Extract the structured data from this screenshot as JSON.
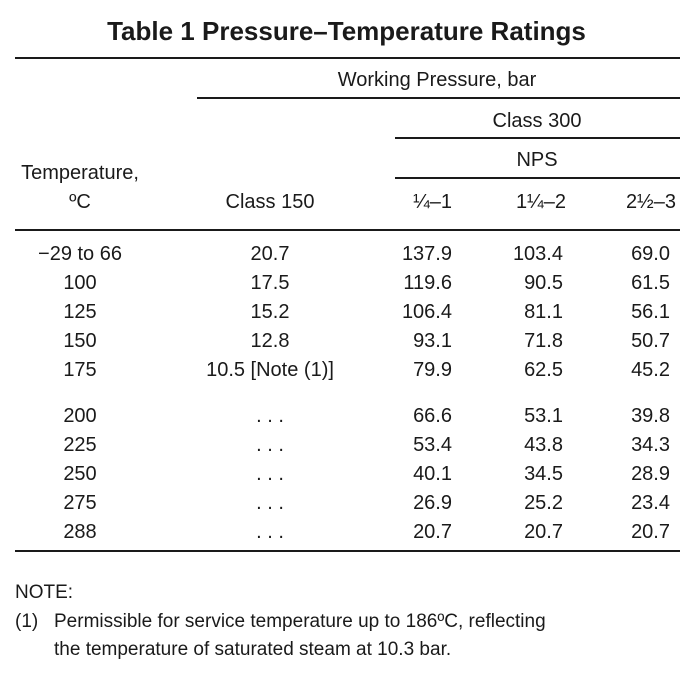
{
  "title": "Table 1    Pressure–Temperature Ratings",
  "header": {
    "working_pressure": "Working Pressure, bar",
    "class_300": "Class 300",
    "nps": "NPS",
    "temperature_line1": "Temperature,",
    "temperature_line2": "ºC",
    "class_150": "Class 150",
    "nps_cols": [
      "¼–1",
      "1¼–2",
      "2½–3"
    ]
  },
  "rows": [
    [
      "−29 to 66",
      "20.7",
      "137.9",
      "103.4",
      "69.0"
    ],
    [
      "100",
      "17.5",
      "119.6",
      "90.5",
      "61.5"
    ],
    [
      "125",
      "15.2",
      "106.4",
      "81.1",
      "56.1"
    ],
    [
      "150",
      "12.8",
      "93.1",
      "71.8",
      "50.7"
    ],
    [
      "175",
      "10.5 [Note (1)]",
      "79.9",
      "62.5",
      "45.2"
    ],
    [
      "200",
      ". . .",
      "66.6",
      "53.1",
      "39.8"
    ],
    [
      "225",
      ". . .",
      "53.4",
      "43.8",
      "34.3"
    ],
    [
      "250",
      ". . .",
      "40.1",
      "34.5",
      "28.9"
    ],
    [
      "275",
      ". . .",
      "26.9",
      "25.2",
      "23.4"
    ],
    [
      "288",
      ". . .",
      "20.7",
      "20.7",
      "20.7"
    ]
  ],
  "notes": {
    "heading": "NOTE:",
    "number": "(1)",
    "line1": "Permissible for service temperature up to 186ºC, reflecting",
    "line2": "the temperature of saturated steam at 10.3 bar."
  }
}
